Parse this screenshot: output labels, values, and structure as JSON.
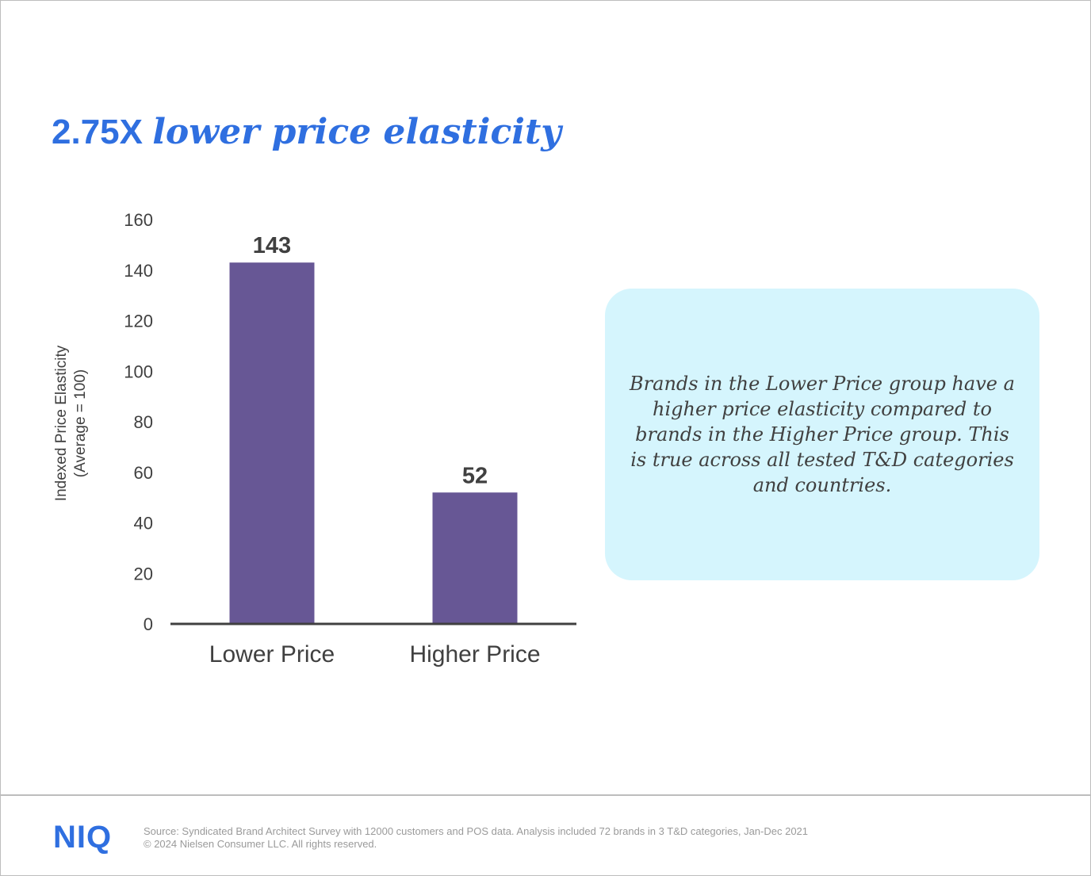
{
  "title": {
    "lead": "2.75X",
    "rest": "lower price elasticity"
  },
  "chart_data": {
    "type": "bar",
    "categories": [
      "Lower Price",
      "Higher Price"
    ],
    "values": [
      143,
      52
    ],
    "data_labels": [
      "143",
      "52"
    ],
    "ylabel_line1": "Indexed Price Elasticity",
    "ylabel_line2": "(Average = 100)",
    "ylim": [
      0,
      160
    ],
    "yticks": [
      0,
      20,
      40,
      60,
      80,
      100,
      120,
      140,
      160
    ],
    "grid": false,
    "bar_color": "#675795"
  },
  "callout": {
    "text": "Brands in the Lower Price group have a higher price elasticity compared to brands in the Higher Price group. This is true across all tested T&D categories and countries."
  },
  "footer": {
    "logo": "NIQ",
    "source": "Source: Syndicated Brand Architect Survey with 12000 customers and POS data. Analysis included 72 brands in 3 T&D categories, Jan-Dec 2021",
    "copyright": "© 2024 Nielsen Consumer LLC. All rights reserved."
  },
  "colors": {
    "accent": "#2f6fe0",
    "callout_bg": "#d5f5fd",
    "text": "#404040"
  }
}
